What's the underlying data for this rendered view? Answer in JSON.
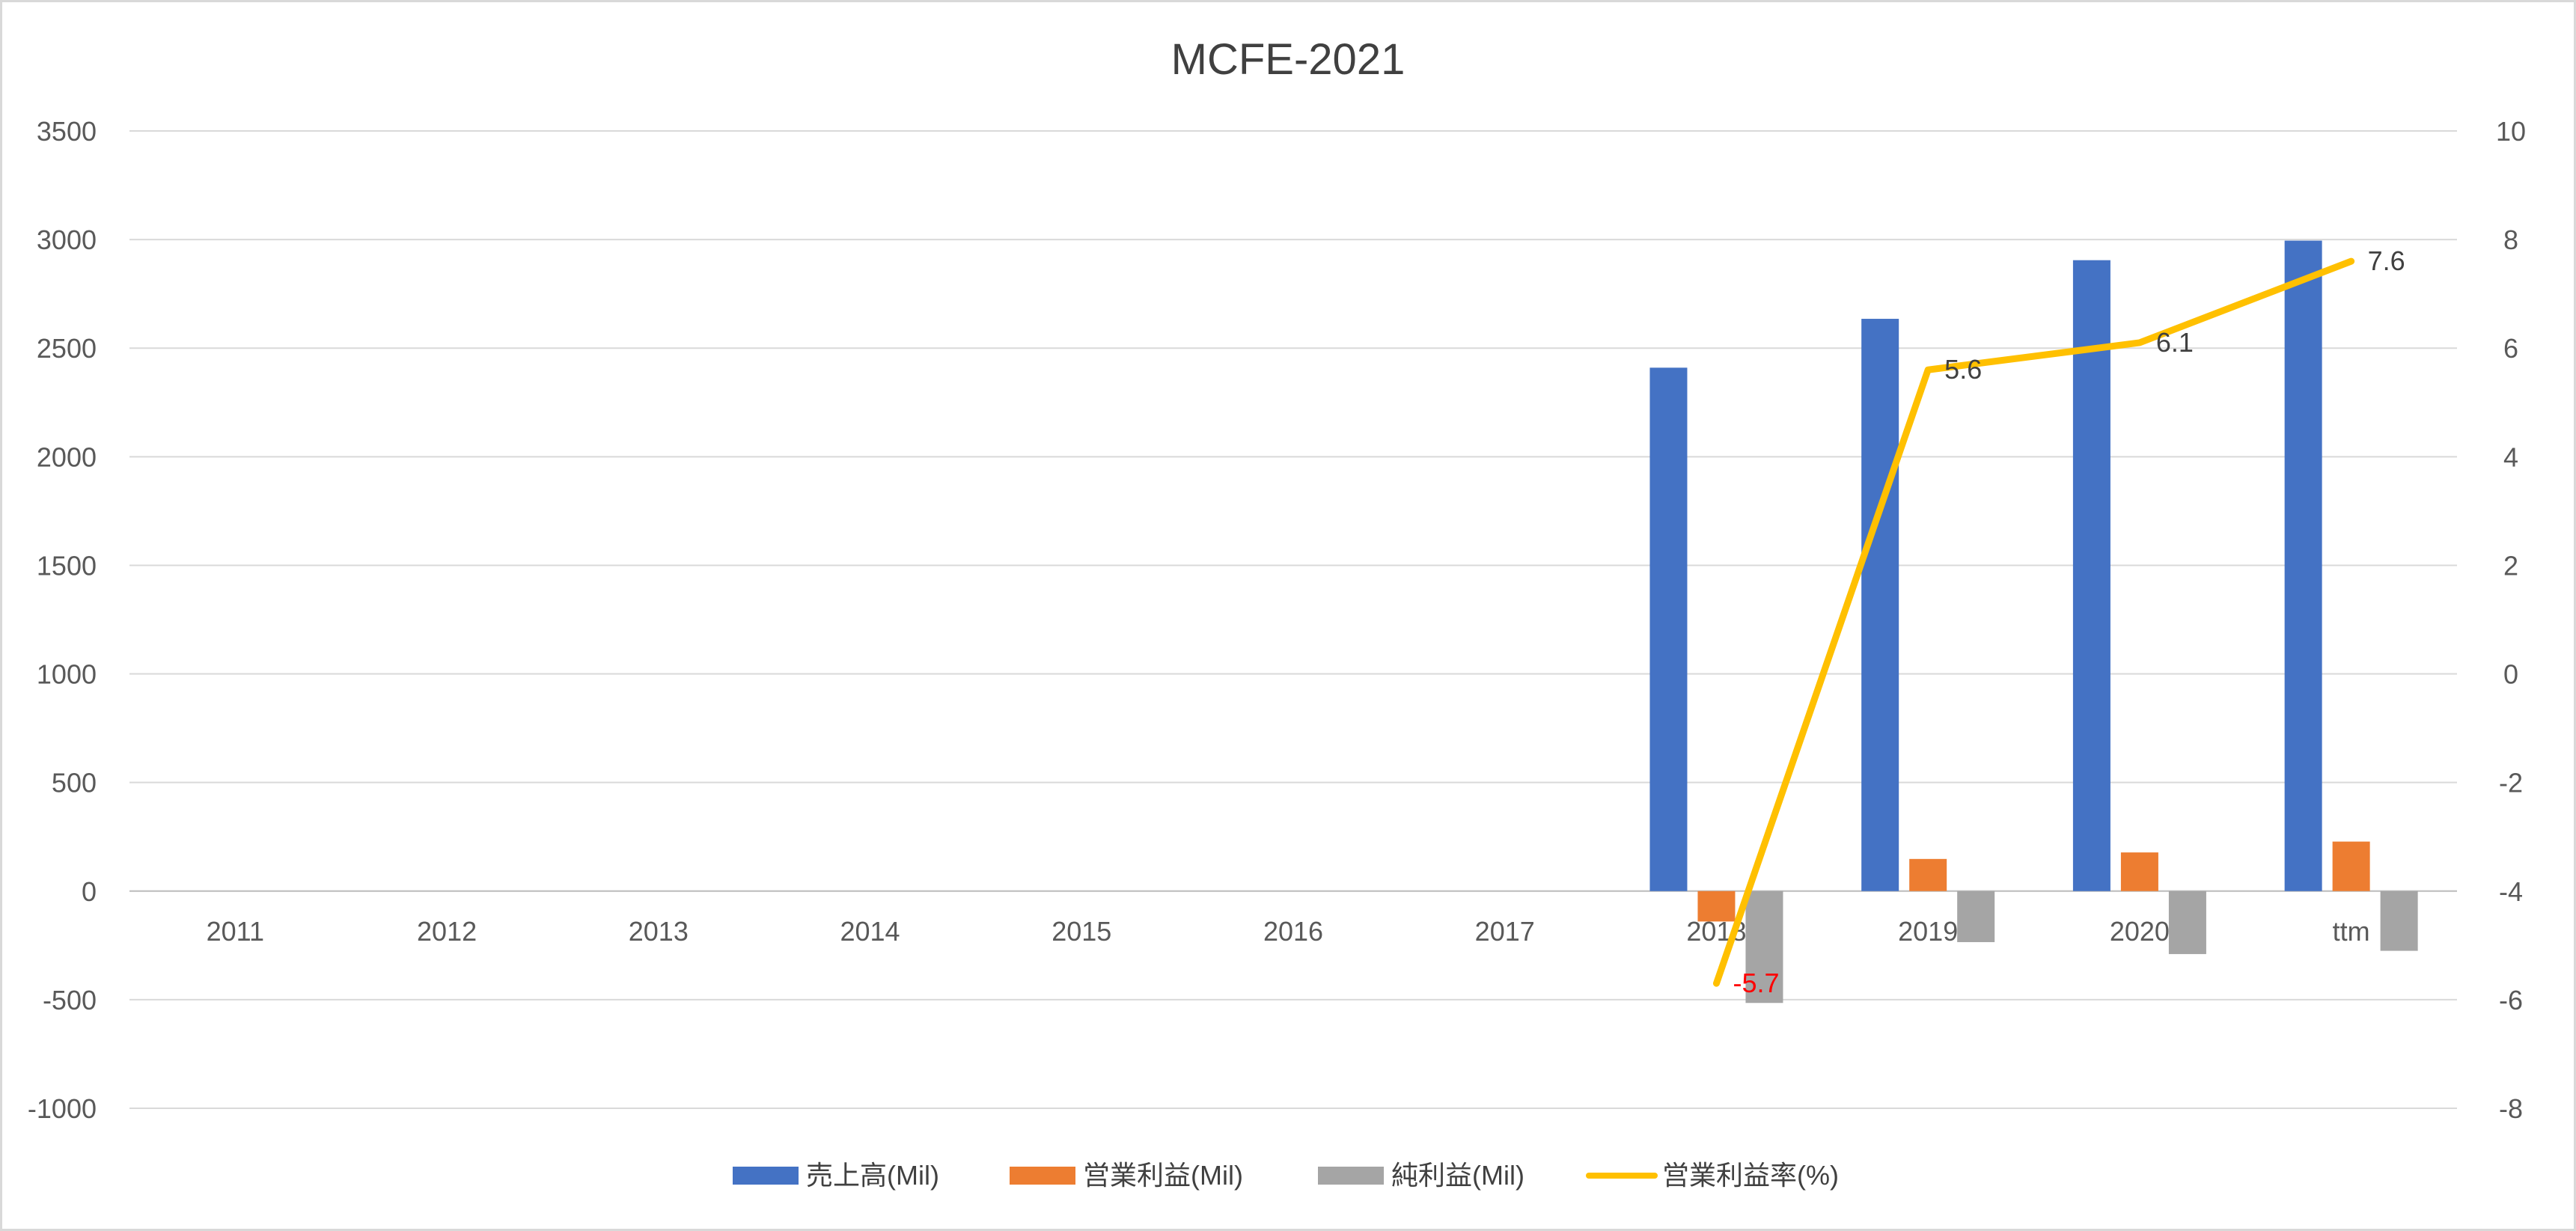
{
  "chart_data": {
    "type": "bar",
    "title": "MCFE-2021",
    "categories": [
      "2011",
      "2012",
      "2013",
      "2014",
      "2015",
      "2016",
      "2017",
      "2018",
      "2019",
      "2020",
      "ttm"
    ],
    "series": [
      {
        "name": "売上高(Mil)",
        "kind": "bar",
        "axis": "left",
        "color": "#4472C4",
        "values": [
          null,
          null,
          null,
          null,
          null,
          null,
          null,
          2410,
          2635,
          2905,
          2995
        ]
      },
      {
        "name": "営業利益(Mil)",
        "kind": "bar",
        "axis": "left",
        "color": "#ED7D31",
        "values": [
          null,
          null,
          null,
          null,
          null,
          null,
          null,
          -140,
          148,
          178,
          228
        ]
      },
      {
        "name": "純利益(Mil)",
        "kind": "bar",
        "axis": "left",
        "color": "#A5A5A5",
        "values": [
          null,
          null,
          null,
          null,
          null,
          null,
          null,
          -515,
          -235,
          -290,
          -275
        ]
      },
      {
        "name": "営業利益率(%)",
        "kind": "line",
        "axis": "right",
        "color": "#FFC000",
        "values": [
          null,
          null,
          null,
          null,
          null,
          null,
          null,
          -5.7,
          5.6,
          6.1,
          7.6
        ]
      }
    ],
    "data_labels": [
      {
        "category": "2018",
        "text": "-5.7",
        "color": "#FF0000"
      },
      {
        "category": "2019",
        "text": "5.6",
        "color": "#404040"
      },
      {
        "category": "2020",
        "text": "6.1",
        "color": "#404040"
      },
      {
        "category": "ttm",
        "text": "7.6",
        "color": "#404040"
      }
    ],
    "y_left": {
      "min": -1000,
      "max": 3500,
      "step": 500,
      "ticks": [
        "-1000",
        "-500",
        "0",
        "500",
        "1000",
        "1500",
        "2000",
        "2500",
        "3000",
        "3500"
      ]
    },
    "y_right": {
      "min": -8,
      "max": 10,
      "step": 2,
      "ticks": [
        "-8",
        "-6",
        "-4",
        "-2",
        "0",
        "2",
        "4",
        "6",
        "8",
        "10"
      ]
    },
    "grid": true,
    "legend_position": "bottom"
  }
}
